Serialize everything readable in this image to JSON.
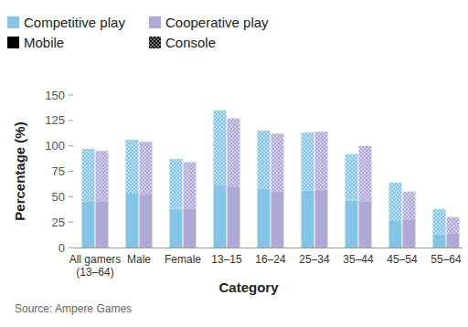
{
  "chart_data": {
    "type": "bar",
    "stacked": true,
    "legend": "top",
    "grid": false,
    "x_label": "Category",
    "y_label": "Percentage (%)",
    "source": "Source: Ampere Games",
    "categories": [
      "All gamers (13–64)",
      "Male",
      "Female",
      "13–15",
      "16–24",
      "25–34",
      "35–44",
      "45–54",
      "55–64"
    ],
    "segments": [
      "Mobile",
      "Console"
    ],
    "series": [
      {
        "name": "Competitive play",
        "color": "#86c4e4",
        "mobile": [
          45,
          53,
          38,
          61,
          58,
          56,
          46,
          26,
          13
        ],
        "console": [
          52,
          53,
          49,
          74,
          57,
          57,
          46,
          38,
          25
        ]
      },
      {
        "name": "Cooperative play",
        "color": "#aea7d8",
        "mobile": [
          45,
          52,
          38,
          60,
          55,
          57,
          45,
          27,
          14
        ],
        "console": [
          50,
          52,
          46,
          67,
          57,
          57,
          55,
          28,
          16
        ]
      }
    ],
    "ylim": [
      0,
      150
    ],
    "yticks": [
      0,
      25,
      50,
      75,
      100,
      125,
      150
    ]
  }
}
